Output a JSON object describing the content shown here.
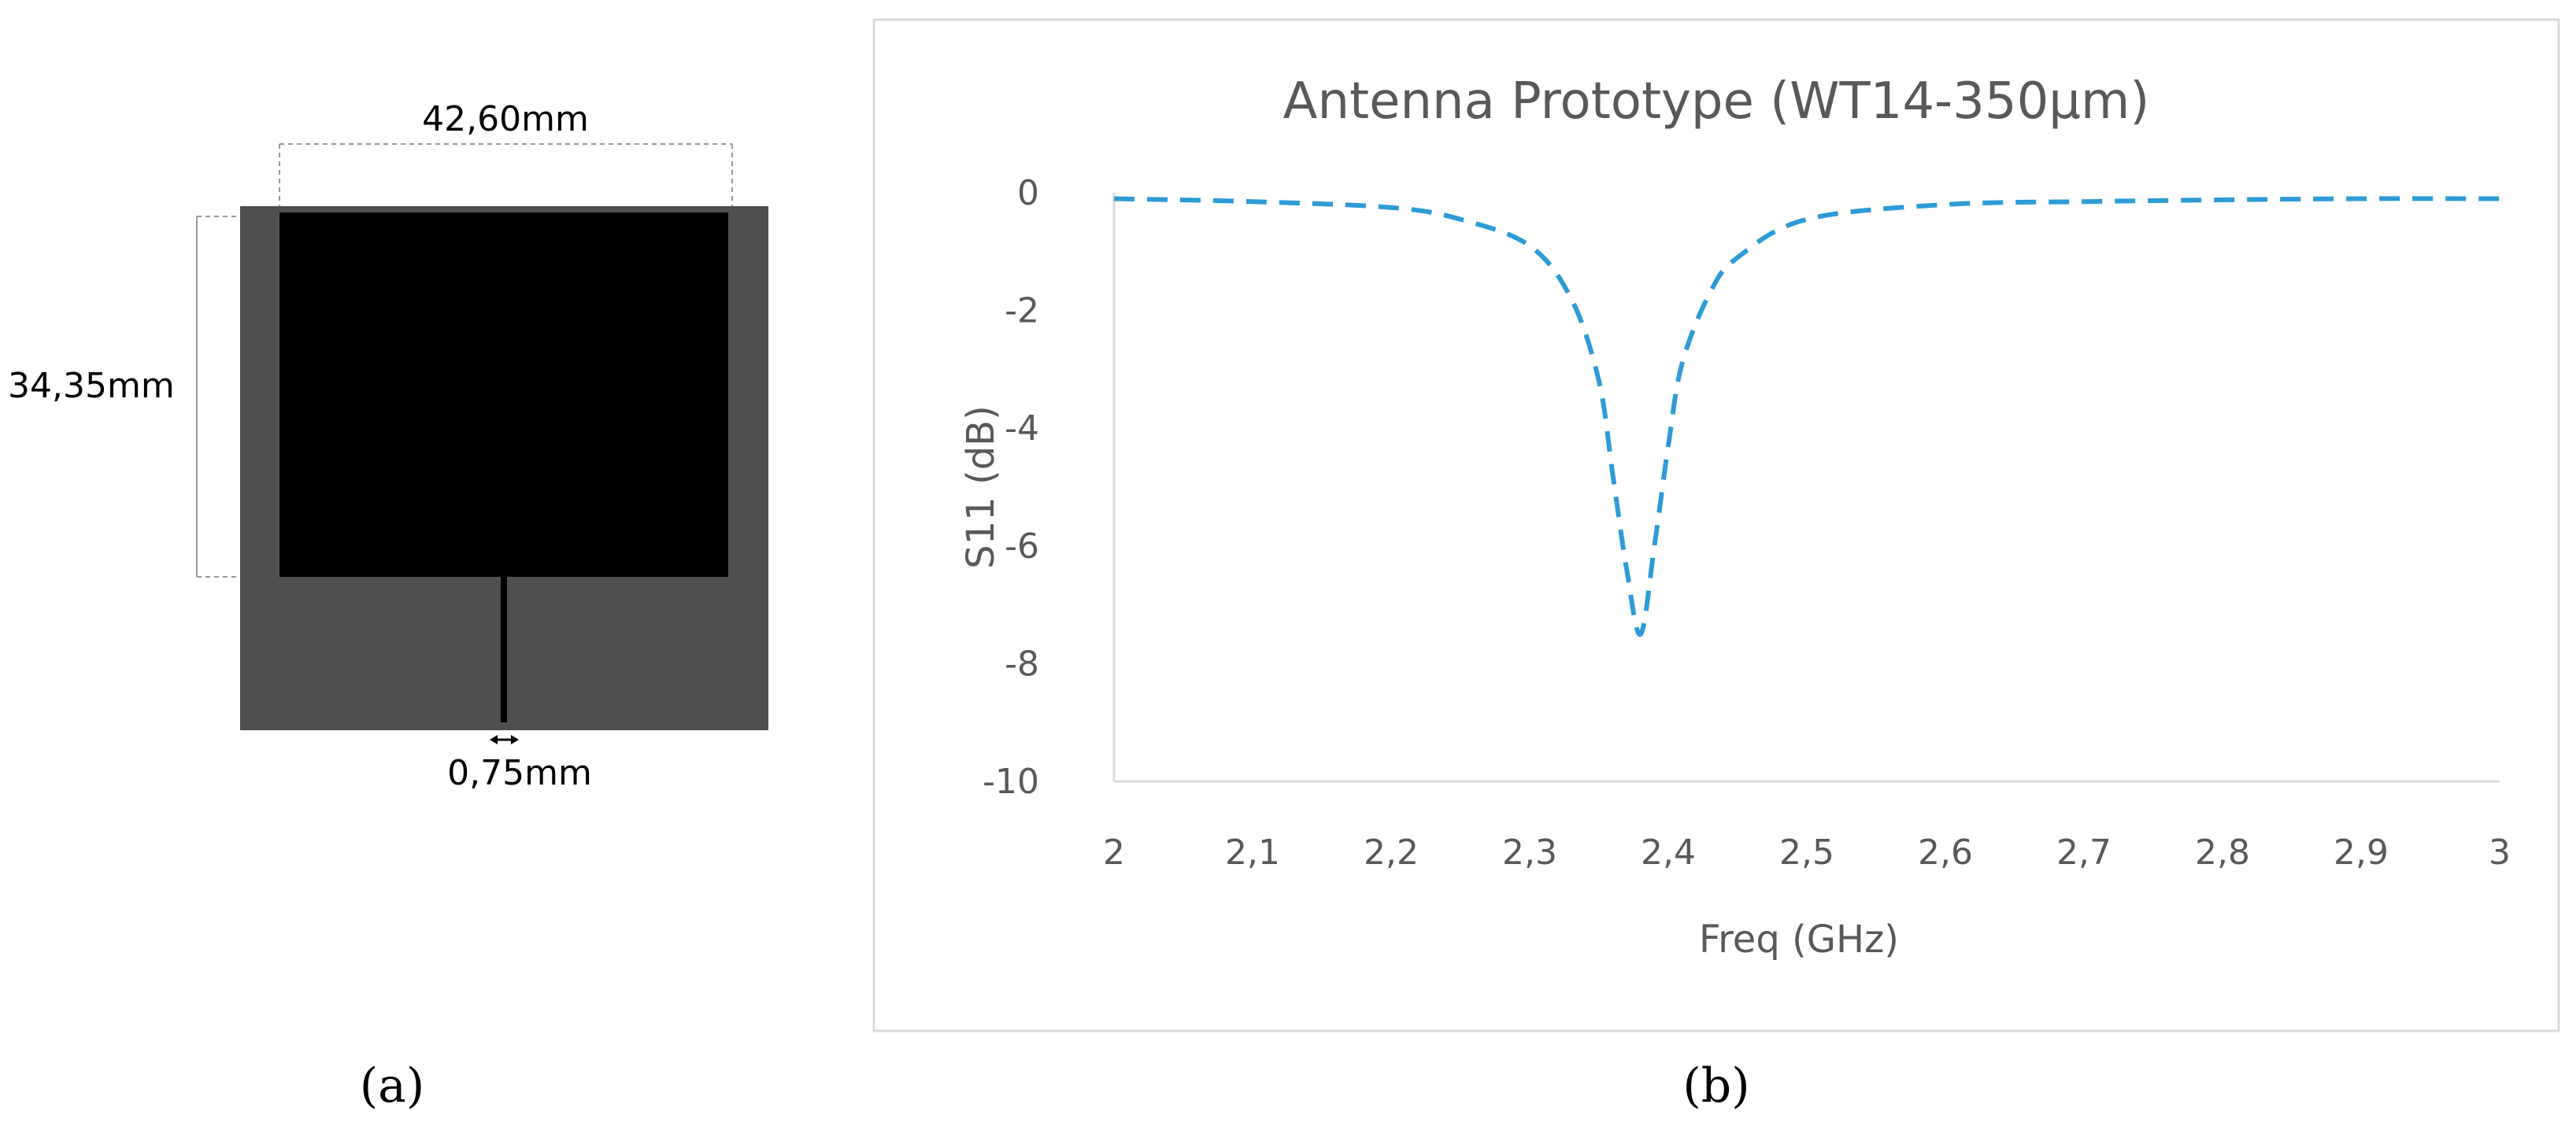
{
  "panel_a": {
    "width_label": "42,60mm",
    "height_label": "34,35mm",
    "feed_label": "0,75mm",
    "caption": "(a)",
    "substrate_color": "#4f4f4f",
    "patch_color": "#000000"
  },
  "panel_b": {
    "caption": "(b)"
  },
  "chart_data": {
    "type": "line",
    "title": "Antenna Prototype (WT14-350µm)",
    "xlabel": "Freq (GHz)",
    "ylabel": "S11 (dB)",
    "xlim": [
      2,
      3
    ],
    "ylim": [
      -10,
      0
    ],
    "x_ticks": [
      "2",
      "2,1",
      "2,2",
      "2,3",
      "2,4",
      "2,5",
      "2,6",
      "2,7",
      "2,8",
      "2,9",
      "3"
    ],
    "y_ticks": [
      "0",
      "-2",
      "-4",
      "-6",
      "-8",
      "-10"
    ],
    "series": [
      {
        "name": "S11",
        "color": "#2e9bd6",
        "style": "dashed",
        "x": [
          2.0,
          2.1,
          2.2,
          2.25,
          2.3,
          2.33,
          2.35,
          2.36,
          2.37,
          2.38,
          2.39,
          2.4,
          2.41,
          2.43,
          2.45,
          2.5,
          2.6,
          2.7,
          2.8,
          2.9,
          3.0
        ],
        "y": [
          -0.1,
          -0.15,
          -0.25,
          -0.45,
          -0.9,
          -1.8,
          -3.2,
          -4.8,
          -6.4,
          -7.5,
          -6.0,
          -4.3,
          -2.9,
          -1.7,
          -1.1,
          -0.45,
          -0.2,
          -0.15,
          -0.12,
          -0.1,
          -0.1
        ]
      }
    ]
  }
}
